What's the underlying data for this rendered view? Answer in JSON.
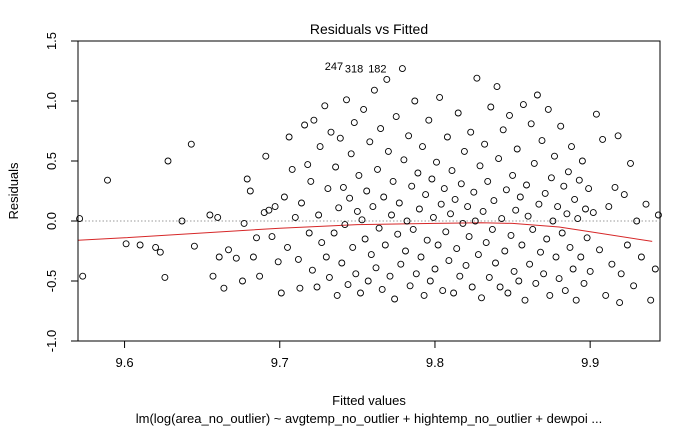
{
  "chart_data": {
    "type": "scatter",
    "title": "Residuals vs Fitted",
    "xlabel": "Fitted values",
    "ylabel": "Residuals",
    "subtitle": "lm(log(area_no_outlier) ~ avgtemp_no_outlier + hightemp_no_outlier + dewpoi ...",
    "xlim": [
      9.57,
      9.945
    ],
    "ylim": [
      -1.0,
      1.5
    ],
    "xticks": [
      "9.6",
      "9.7",
      "9.8",
      "9.9"
    ],
    "xtick_values": [
      9.6,
      9.7,
      9.8,
      9.9
    ],
    "yticks": [
      "-1.0",
      "-0.5",
      "0.0",
      "0.5",
      "1.0",
      "1.5"
    ],
    "ytick_values": [
      -1.0,
      -0.5,
      0.0,
      0.5,
      1.0,
      1.5
    ],
    "reference_line": {
      "y": 0,
      "style": "dotted",
      "color": "#9a9a9a"
    },
    "smooth_line": {
      "color": "#d62728",
      "x": [
        9.57,
        9.6,
        9.65,
        9.7,
        9.75,
        9.8,
        9.83,
        9.85,
        9.88,
        9.9,
        9.94
      ],
      "y": [
        -0.16,
        -0.14,
        -0.1,
        -0.06,
        -0.03,
        -0.02,
        -0.015,
        -0.02,
        -0.05,
        -0.09,
        -0.17
      ]
    },
    "annotations": [
      {
        "text": "247",
        "x": 9.729,
        "y": 1.29
      },
      {
        "text": "318",
        "x": 9.742,
        "y": 1.27
      },
      {
        "text": "182",
        "x": 9.757,
        "y": 1.27
      }
    ],
    "points": [
      [
        9.571,
        0.02
      ],
      [
        9.573,
        -0.46
      ],
      [
        9.589,
        0.34
      ],
      [
        9.601,
        -0.19
      ],
      [
        9.61,
        -0.2
      ],
      [
        9.62,
        -0.22
      ],
      [
        9.623,
        -0.26
      ],
      [
        9.626,
        -0.47
      ],
      [
        9.628,
        0.5
      ],
      [
        9.637,
        0.0
      ],
      [
        9.643,
        0.64
      ],
      [
        9.645,
        -0.21
      ],
      [
        9.655,
        0.05
      ],
      [
        9.657,
        -0.46
      ],
      [
        9.66,
        0.03
      ],
      [
        9.661,
        -0.3
      ],
      [
        9.664,
        -0.56
      ],
      [
        9.667,
        -0.24
      ],
      [
        9.672,
        -0.31
      ],
      [
        9.676,
        -0.5
      ],
      [
        9.677,
        -0.02
      ],
      [
        9.679,
        0.35
      ],
      [
        9.681,
        0.25
      ],
      [
        9.683,
        -0.3
      ],
      [
        9.685,
        -0.14
      ],
      [
        9.687,
        -0.46
      ],
      [
        9.69,
        0.07
      ],
      [
        9.691,
        0.54
      ],
      [
        9.693,
        0.09
      ],
      [
        9.695,
        -0.13
      ],
      [
        9.697,
        0.12
      ],
      [
        9.699,
        -0.34
      ],
      [
        9.701,
        -0.6
      ],
      [
        9.703,
        0.2
      ],
      [
        9.705,
        -0.22
      ],
      [
        9.706,
        0.7
      ],
      [
        9.708,
        0.43
      ],
      [
        9.71,
        0.03
      ],
      [
        9.712,
        -0.32
      ],
      [
        9.713,
        -0.56
      ],
      [
        9.714,
        0.15
      ],
      [
        9.716,
        0.8
      ],
      [
        9.718,
        0.47
      ],
      [
        9.719,
        -0.1
      ],
      [
        9.72,
        0.33
      ],
      [
        9.721,
        -0.41
      ],
      [
        9.722,
        0.84
      ],
      [
        9.724,
        -0.55
      ],
      [
        9.725,
        0.05
      ],
      [
        9.726,
        0.62
      ],
      [
        9.727,
        -0.18
      ],
      [
        9.729,
        0.96
      ],
      [
        9.73,
        -0.3
      ],
      [
        9.731,
        0.27
      ],
      [
        9.732,
        -0.47
      ],
      [
        9.733,
        0.74
      ],
      [
        9.735,
        -0.1
      ],
      [
        9.736,
        0.45
      ],
      [
        9.737,
        -0.62
      ],
      [
        9.738,
        0.11
      ],
      [
        9.739,
        0.69
      ],
      [
        9.74,
        -0.35
      ],
      [
        9.741,
        0.28
      ],
      [
        9.742,
        -0.03
      ],
      [
        9.743,
        1.01
      ],
      [
        9.744,
        -0.53
      ],
      [
        9.745,
        0.19
      ],
      [
        9.746,
        0.56
      ],
      [
        9.747,
        -0.22
      ],
      [
        9.748,
        0.82
      ],
      [
        9.749,
        -0.44
      ],
      [
        9.75,
        0.08
      ],
      [
        9.751,
        0.38
      ],
      [
        9.752,
        -0.6
      ],
      [
        9.753,
        0.01
      ],
      [
        9.754,
        0.93
      ],
      [
        9.755,
        -0.15
      ],
      [
        9.756,
        0.25
      ],
      [
        9.757,
        -0.5
      ],
      [
        9.758,
        0.66
      ],
      [
        9.759,
        -0.28
      ],
      [
        9.76,
        0.12
      ],
      [
        9.761,
        1.09
      ],
      [
        9.762,
        -0.39
      ],
      [
        9.763,
        0.43
      ],
      [
        9.764,
        -0.06
      ],
      [
        9.765,
        0.77
      ],
      [
        9.766,
        -0.57
      ],
      [
        9.767,
        0.2
      ],
      [
        9.768,
        -0.2
      ],
      [
        9.769,
        1.18
      ],
      [
        9.77,
        0.58
      ],
      [
        9.771,
        -0.46
      ],
      [
        9.772,
        0.05
      ],
      [
        9.773,
        0.33
      ],
      [
        9.774,
        -0.65
      ],
      [
        9.775,
        0.87
      ],
      [
        9.776,
        -0.11
      ],
      [
        9.777,
        0.15
      ],
      [
        9.778,
        -0.36
      ],
      [
        9.779,
        1.27
      ],
      [
        9.78,
        0.51
      ],
      [
        9.781,
        -0.25
      ],
      [
        9.782,
        0.0
      ],
      [
        9.783,
        0.71
      ],
      [
        9.784,
        -0.54
      ],
      [
        9.785,
        0.29
      ],
      [
        9.786,
        -0.07
      ],
      [
        9.787,
        1.0
      ],
      [
        9.788,
        -0.44
      ],
      [
        9.789,
        0.4
      ],
      [
        9.79,
        0.1
      ],
      [
        9.791,
        -0.3
      ],
      [
        9.792,
        0.62
      ],
      [
        9.793,
        -0.62
      ],
      [
        9.794,
        0.22
      ],
      [
        9.795,
        -0.16
      ],
      [
        9.796,
        0.84
      ],
      [
        9.797,
        -0.5
      ],
      [
        9.798,
        0.35
      ],
      [
        9.799,
        0.03
      ],
      [
        9.8,
        -0.4
      ],
      [
        9.801,
        0.49
      ],
      [
        9.802,
        -0.2
      ],
      [
        9.803,
        1.03
      ],
      [
        9.804,
        0.14
      ],
      [
        9.805,
        -0.58
      ],
      [
        9.806,
        0.27
      ],
      [
        9.807,
        -0.09
      ],
      [
        9.808,
        0.7
      ],
      [
        9.809,
        -0.33
      ],
      [
        9.81,
        0.06
      ],
      [
        9.811,
        0.42
      ],
      [
        9.812,
        -0.6
      ],
      [
        9.813,
        0.18
      ],
      [
        9.814,
        -0.23
      ],
      [
        9.815,
        0.9
      ],
      [
        9.816,
        -0.46
      ],
      [
        9.817,
        0.31
      ],
      [
        9.818,
        -0.02
      ],
      [
        9.819,
        0.58
      ],
      [
        9.82,
        -0.37
      ],
      [
        9.821,
        0.12
      ],
      [
        9.822,
        -0.13
      ],
      [
        9.823,
        0.74
      ],
      [
        9.824,
        -0.55
      ],
      [
        9.825,
        0.24
      ],
      [
        9.826,
        0.0
      ],
      [
        9.827,
        1.19
      ],
      [
        9.828,
        -0.28
      ],
      [
        9.829,
        0.46
      ],
      [
        9.83,
        -0.64
      ],
      [
        9.831,
        0.08
      ],
      [
        9.832,
        0.64
      ],
      [
        9.833,
        -0.18
      ],
      [
        9.834,
        0.33
      ],
      [
        9.835,
        -0.47
      ],
      [
        9.836,
        0.95
      ],
      [
        9.837,
        -0.07
      ],
      [
        9.838,
        0.17
      ],
      [
        9.839,
        -0.35
      ],
      [
        9.84,
        1.12
      ],
      [
        9.841,
        0.52
      ],
      [
        9.842,
        -0.55
      ],
      [
        9.843,
        0.02
      ],
      [
        9.844,
        0.76
      ],
      [
        9.845,
        -0.25
      ],
      [
        9.846,
        0.26
      ],
      [
        9.847,
        -0.6
      ],
      [
        9.848,
        0.88
      ],
      [
        9.849,
        -0.12
      ],
      [
        9.85,
        0.38
      ],
      [
        9.851,
        -0.42
      ],
      [
        9.852,
        0.09
      ],
      [
        9.853,
        0.6
      ],
      [
        9.854,
        -0.5
      ],
      [
        9.855,
        0.2
      ],
      [
        9.856,
        -0.2
      ],
      [
        9.857,
        0.97
      ],
      [
        9.858,
        -0.66
      ],
      [
        9.859,
        0.3
      ],
      [
        9.86,
        0.04
      ],
      [
        9.861,
        -0.36
      ],
      [
        9.862,
        0.81
      ],
      [
        9.863,
        -0.07
      ],
      [
        9.864,
        0.48
      ],
      [
        9.865,
        -0.52
      ],
      [
        9.866,
        1.05
      ],
      [
        9.867,
        0.14
      ],
      [
        9.868,
        -0.26
      ],
      [
        9.869,
        0.67
      ],
      [
        9.87,
        -0.44
      ],
      [
        9.871,
        0.23
      ],
      [
        9.872,
        -0.15
      ],
      [
        9.873,
        0.93
      ],
      [
        9.874,
        -0.62
      ],
      [
        9.875,
        0.36
      ],
      [
        9.876,
        0.0
      ],
      [
        9.877,
        0.54
      ],
      [
        9.878,
        -0.3
      ],
      [
        9.879,
        0.12
      ],
      [
        9.88,
        -0.48
      ],
      [
        9.881,
        0.79
      ],
      [
        9.882,
        -0.1
      ],
      [
        9.883,
        0.29
      ],
      [
        9.884,
        -0.58
      ],
      [
        9.885,
        0.06
      ],
      [
        9.886,
        0.41
      ],
      [
        9.887,
        -0.22
      ],
      [
        9.888,
        0.62
      ],
      [
        9.889,
        -0.4
      ],
      [
        9.89,
        0.18
      ],
      [
        9.891,
        -0.66
      ],
      [
        9.892,
        0.02
      ],
      [
        9.893,
        0.34
      ],
      [
        9.894,
        -0.3
      ],
      [
        9.895,
        0.5
      ],
      [
        9.896,
        -0.52
      ],
      [
        9.897,
        0.1
      ],
      [
        9.898,
        -0.14
      ],
      [
        9.899,
        0.27
      ],
      [
        9.9,
        -0.42
      ],
      [
        9.902,
        0.07
      ],
      [
        9.904,
        0.89
      ],
      [
        9.906,
        -0.24
      ],
      [
        9.908,
        0.68
      ],
      [
        9.91,
        -0.62
      ],
      [
        9.912,
        0.12
      ],
      [
        9.914,
        -0.36
      ],
      [
        9.916,
        0.28
      ],
      [
        9.918,
        0.71
      ],
      [
        9.919,
        -0.68
      ],
      [
        9.92,
        -0.44
      ],
      [
        9.922,
        0.22
      ],
      [
        9.924,
        -0.2
      ],
      [
        9.926,
        0.48
      ],
      [
        9.928,
        -0.54
      ],
      [
        9.93,
        0.0
      ],
      [
        9.933,
        -0.3
      ],
      [
        9.936,
        0.14
      ],
      [
        9.939,
        -0.66
      ],
      [
        9.942,
        -0.4
      ],
      [
        9.944,
        0.05
      ]
    ]
  }
}
